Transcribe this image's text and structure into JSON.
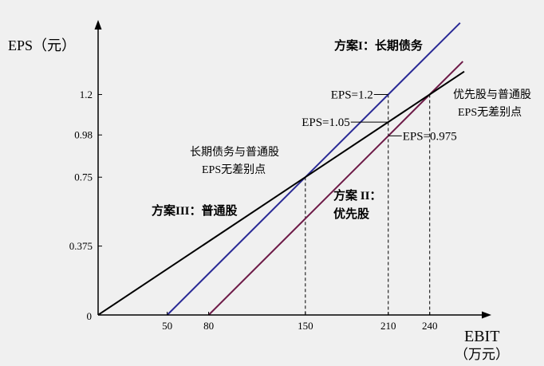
{
  "colors": {
    "background": "#f0f0f0",
    "axis": "#000000"
  },
  "chart_data": {
    "type": "line",
    "ylabel": "EPS（元）",
    "xlabel": "EBIT",
    "xlabel_unit": "（万元）",
    "xlim": [
      0,
      280
    ],
    "ylim": [
      0,
      1.58
    ],
    "grid": false,
    "origin_label": "0",
    "x_ticks": [
      {
        "value": 50,
        "label": "50"
      },
      {
        "value": 80,
        "label": "80"
      },
      {
        "value": 150,
        "label": "150"
      },
      {
        "value": 210,
        "label": "210"
      },
      {
        "value": 240,
        "label": "240"
      }
    ],
    "y_ticks": [
      {
        "value": 0.375,
        "label": "0.375"
      },
      {
        "value": 0.75,
        "label": "0.75"
      },
      {
        "value": 0.98,
        "label": "0.98"
      },
      {
        "value": 1.2,
        "label": "1.2"
      }
    ],
    "series": [
      {
        "label_lines": [
          "方案I：长期债务"
        ],
        "color": "#2a2a96",
        "x": [
          50,
          150,
          210,
          262
        ],
        "y": [
          0,
          0.75,
          1.2,
          1.59
        ]
      },
      {
        "label_lines": [
          "方案 II：",
          "优先股"
        ],
        "color": "#6d1a47",
        "x": [
          80,
          210,
          240,
          264
        ],
        "y": [
          0,
          0.975,
          1.2,
          1.38
        ]
      },
      {
        "label_lines": [
          "方案III：普通股"
        ],
        "color": "#000000",
        "x": [
          0,
          150,
          240,
          265
        ],
        "y": [
          0,
          0.75,
          1.2,
          1.325
        ]
      }
    ],
    "reference_lines": [
      {
        "x": 150,
        "y": 0.75
      },
      {
        "x": 210,
        "y": 1.2
      },
      {
        "x": 240,
        "y": 1.2
      }
    ],
    "value_annotations": [
      {
        "text": "EPS=1.2",
        "x": 210,
        "y": 1.2
      },
      {
        "text": "EPS=1.05",
        "x": 210,
        "y": 1.05
      },
      {
        "text": "EPS=0.975",
        "x": 210,
        "y": 0.975
      }
    ],
    "indifference_points": [
      {
        "label_lines": [
          "长期债务与普通股",
          "EPS无差别点"
        ],
        "x": 150,
        "y": 0.75
      },
      {
        "label_lines": [
          "优先股与普通股",
          "EPS无差别点"
        ],
        "x": 240,
        "y": 1.2
      }
    ]
  }
}
